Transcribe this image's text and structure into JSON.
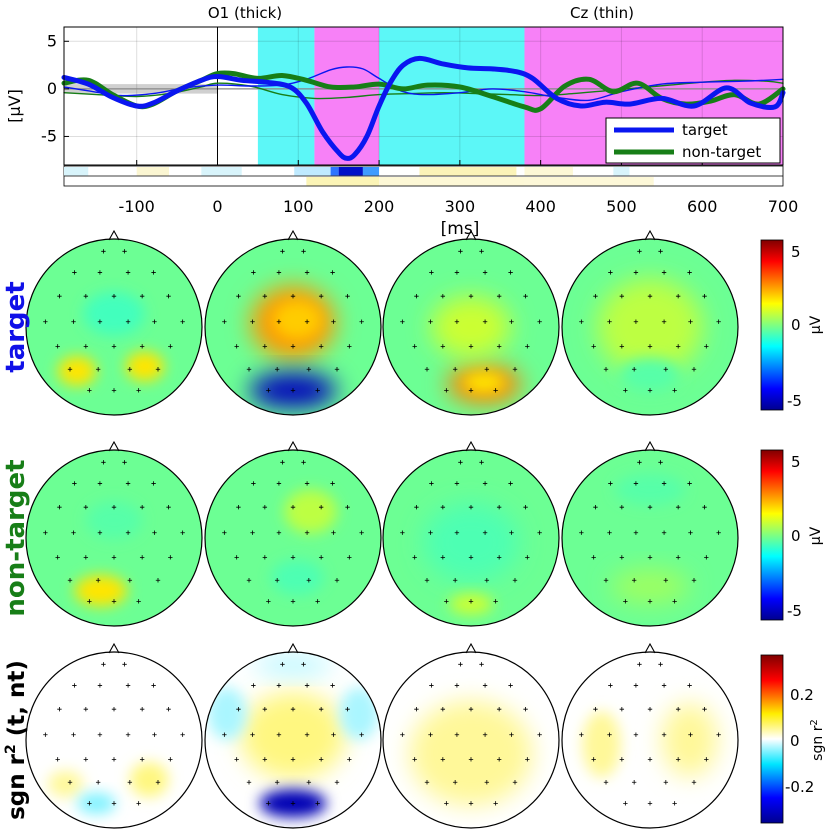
{
  "chart_data": {
    "type": "line",
    "top_panel": {
      "titles": {
        "left": "O1 (thick)",
        "right": "Cz (thin)"
      },
      "xlabel": "[ms]",
      "ylabel": "[µV]",
      "xlim": [
        -190,
        700
      ],
      "ylim": [
        -8,
        6.5
      ],
      "x_ticks": [
        -100,
        0,
        100,
        200,
        300,
        400,
        500,
        600,
        700
      ],
      "x_tick_labels": [
        "-100",
        "0",
        "100",
        "200",
        "300",
        "400",
        "500",
        "600",
        "700"
      ],
      "y_ticks": [
        5,
        0,
        -5
      ],
      "y_tick_labels": [
        "5",
        "0",
        "-5"
      ],
      "baseline_region_ms": [
        -190,
        0
      ],
      "event_line_ms": 0,
      "intervals": [
        {
          "from_ms": 50,
          "to_ms": 120,
          "color": "#5cf7f7"
        },
        {
          "from_ms": 120,
          "to_ms": 200,
          "color": "#f781f7"
        },
        {
          "from_ms": 200,
          "to_ms": 380,
          "color": "#5cf7f7"
        },
        {
          "from_ms": 380,
          "to_ms": 700,
          "color": "#f781f7"
        }
      ],
      "legend": [
        {
          "label": "target",
          "color": "#0a16f0"
        },
        {
          "label": "non-target",
          "color": "#177e17"
        }
      ],
      "series": [
        {
          "name": "target O1",
          "channel": "O1",
          "class": "target",
          "width": "thick",
          "color": "#0a16f0",
          "x": [
            -190,
            -160,
            -130,
            -100,
            -80,
            -50,
            -20,
            0,
            30,
            60,
            90,
            110,
            130,
            150,
            160,
            170,
            185,
            200,
            215,
            230,
            250,
            280,
            310,
            340,
            370,
            390,
            420,
            450,
            480,
            510,
            550,
            590,
            630,
            660,
            690,
            700
          ],
          "y": [
            1.2,
            0.5,
            -0.9,
            -1.8,
            -1.5,
            -0.2,
            0.9,
            1.3,
            0.9,
            0.7,
            0.2,
            -1.5,
            -4.5,
            -6.7,
            -7.3,
            -6.9,
            -5.0,
            -1.8,
            0.8,
            2.5,
            3.2,
            2.6,
            2.2,
            2.1,
            1.8,
            1.1,
            -1.0,
            -1.8,
            -1.4,
            -1.6,
            -1.0,
            -1.8,
            0.1,
            -1.5,
            -1.9,
            -0.4
          ]
        },
        {
          "name": "non-target O1",
          "channel": "O1",
          "class": "non-target",
          "width": "thick",
          "color": "#177e17",
          "x": [
            -190,
            -160,
            -130,
            -100,
            -80,
            -50,
            -20,
            0,
            20,
            50,
            80,
            110,
            140,
            170,
            200,
            230,
            260,
            300,
            340,
            380,
            400,
            430,
            460,
            490,
            520,
            550,
            580,
            610,
            640,
            670,
            700
          ],
          "y": [
            0.6,
            0.9,
            -0.6,
            -1.8,
            -1.6,
            -0.2,
            0.9,
            1.6,
            1.6,
            1.1,
            1.4,
            0.9,
            0.2,
            0.2,
            0.5,
            0.0,
            0.4,
            0.2,
            -0.8,
            -1.9,
            -2.1,
            0.3,
            1.0,
            -0.3,
            0.6,
            -1.0,
            -1.6,
            -1.3,
            -0.6,
            -1.6,
            0.0
          ]
        },
        {
          "name": "target Cz",
          "channel": "Cz",
          "class": "target",
          "width": "thin",
          "color": "#0a16f0",
          "x": [
            -190,
            -160,
            -120,
            -80,
            -40,
            0,
            40,
            80,
            110,
            140,
            160,
            180,
            200,
            230,
            260,
            300,
            340,
            380,
            420,
            460,
            500,
            550,
            600,
            650,
            700
          ],
          "y": [
            0.2,
            -0.2,
            -0.7,
            -0.5,
            0.1,
            0.4,
            0.3,
            0.4,
            1.0,
            2.0,
            2.3,
            2.1,
            1.1,
            -0.3,
            -0.6,
            -0.4,
            0.0,
            -0.3,
            -0.9,
            -1.2,
            -0.3,
            0.5,
            0.7,
            0.8,
            1.0
          ]
        },
        {
          "name": "non-target Cz",
          "channel": "Cz",
          "class": "non-target",
          "width": "thin",
          "color": "#177e17",
          "x": [
            -190,
            -150,
            -100,
            -60,
            -20,
            0,
            40,
            80,
            120,
            160,
            200,
            240,
            280,
            320,
            360,
            400,
            440,
            480,
            520,
            560,
            600,
            640,
            680,
            700
          ],
          "y": [
            -0.4,
            -0.6,
            -0.8,
            -0.5,
            0.2,
            0.6,
            0.3,
            -0.6,
            -1.0,
            -0.9,
            -0.6,
            -0.5,
            -0.4,
            -0.5,
            -0.6,
            -0.7,
            -0.5,
            -0.2,
            0.1,
            0.4,
            0.7,
            0.9,
            0.8,
            0.6
          ]
        }
      ]
    },
    "topomaps": {
      "rows": [
        {
          "label": "target",
          "color": "#1010e8",
          "colorbar_label": "µV",
          "colorbar_ticks": [
            "5",
            "0",
            "-5"
          ],
          "maps": [
            {
              "interval_ms": [
                50,
                120
              ],
              "blobs": [
                {
                  "x": 0.0,
                  "y": -0.15,
                  "rx": 0.35,
                  "ry": 0.25,
                  "value": -0.12
                },
                {
                  "x": -0.42,
                  "y": 0.5,
                  "rx": 0.22,
                  "ry": 0.17,
                  "value": 0.3
                },
                {
                  "x": 0.35,
                  "y": 0.45,
                  "rx": 0.22,
                  "ry": 0.17,
                  "value": 0.3
                }
              ]
            },
            {
              "interval_ms": [
                120,
                200
              ],
              "blobs": [
                {
                  "x": 0.0,
                  "y": -0.05,
                  "rx": 0.48,
                  "ry": 0.42,
                  "value": 0.45
                },
                {
                  "x": 0.05,
                  "y": -0.08,
                  "rx": 0.28,
                  "ry": 0.22,
                  "value": 0.35
                },
                {
                  "x": 0.0,
                  "y": 0.72,
                  "rx": 0.5,
                  "ry": 0.2,
                  "value": -0.9
                }
              ]
            },
            {
              "interval_ms": [
                200,
                380
              ],
              "blobs": [
                {
                  "x": 0.15,
                  "y": 0.65,
                  "rx": 0.42,
                  "ry": 0.22,
                  "value": 0.5
                },
                {
                  "x": 0.15,
                  "y": 0.63,
                  "rx": 0.24,
                  "ry": 0.12,
                  "value": 0.3
                },
                {
                  "x": 0.0,
                  "y": 0.0,
                  "rx": 0.45,
                  "ry": 0.35,
                  "value": 0.15
                }
              ]
            },
            {
              "interval_ms": [
                380,
                700
              ],
              "blobs": [
                {
                  "x": 0.0,
                  "y": 0.0,
                  "rx": 0.6,
                  "ry": 0.55,
                  "value": 0.12
                },
                {
                  "x": 0.0,
                  "y": 0.55,
                  "rx": 0.35,
                  "ry": 0.2,
                  "value": -0.08
                }
              ]
            }
          ]
        },
        {
          "label": "non-target",
          "color": "#177e17",
          "colorbar_label": "µV",
          "colorbar_ticks": [
            "5",
            "0",
            "-5"
          ],
          "maps": [
            {
              "interval_ms": [
                50,
                120
              ],
              "blobs": [
                {
                  "x": 0.0,
                  "y": -0.2,
                  "rx": 0.32,
                  "ry": 0.22,
                  "value": -0.08
                },
                {
                  "x": -0.15,
                  "y": 0.6,
                  "rx": 0.3,
                  "ry": 0.18,
                  "value": 0.3
                }
              ]
            },
            {
              "interval_ms": [
                120,
                200
              ],
              "blobs": [
                {
                  "x": 0.2,
                  "y": -0.3,
                  "rx": 0.3,
                  "ry": 0.25,
                  "value": 0.12
                },
                {
                  "x": 0.05,
                  "y": 0.45,
                  "rx": 0.3,
                  "ry": 0.2,
                  "value": -0.1
                }
              ]
            },
            {
              "interval_ms": [
                200,
                380
              ],
              "blobs": [
                {
                  "x": 0.0,
                  "y": 0.05,
                  "rx": 0.55,
                  "ry": 0.45,
                  "value": -0.1
                },
                {
                  "x": 0.0,
                  "y": 0.75,
                  "rx": 0.25,
                  "ry": 0.12,
                  "value": 0.15
                }
              ]
            },
            {
              "interval_ms": [
                380,
                700
              ],
              "blobs": [
                {
                  "x": 0.0,
                  "y": -0.55,
                  "rx": 0.4,
                  "ry": 0.18,
                  "value": -0.08
                },
                {
                  "x": 0.0,
                  "y": 0.55,
                  "rx": 0.45,
                  "ry": 0.2,
                  "value": 0.06
                }
              ]
            }
          ]
        },
        {
          "label": "sgn r² (t, nt)",
          "color": "#000000",
          "colorbar_label": "sgn r²",
          "colorbar_ticks": [
            "0.2",
            "0",
            "-0.2"
          ],
          "maps": [
            {
              "interval_ms": [
                50,
                120
              ],
              "blobs": [
                {
                  "x": -0.55,
                  "y": 0.5,
                  "rx": 0.2,
                  "ry": 0.15,
                  "value": 0.12
                },
                {
                  "x": 0.4,
                  "y": 0.45,
                  "rx": 0.22,
                  "ry": 0.2,
                  "value": 0.15
                },
                {
                  "x": -0.2,
                  "y": 0.72,
                  "rx": 0.22,
                  "ry": 0.12,
                  "value": -0.15
                }
              ]
            },
            {
              "interval_ms": [
                120,
                200
              ],
              "blobs": [
                {
                  "x": 0.0,
                  "y": -0.05,
                  "rx": 0.6,
                  "ry": 0.5,
                  "value": 0.15
                },
                {
                  "x": 0.0,
                  "y": 0.72,
                  "rx": 0.38,
                  "ry": 0.16,
                  "value": -0.9
                },
                {
                  "x": -0.75,
                  "y": -0.3,
                  "rx": 0.22,
                  "ry": 0.3,
                  "value": -0.1
                },
                {
                  "x": 0.75,
                  "y": -0.3,
                  "rx": 0.22,
                  "ry": 0.3,
                  "value": -0.1
                },
                {
                  "x": 0.0,
                  "y": -0.85,
                  "rx": 0.45,
                  "ry": 0.12,
                  "value": -0.08
                }
              ]
            },
            {
              "interval_ms": [
                200,
                380
              ],
              "blobs": [
                {
                  "x": 0.0,
                  "y": 0.15,
                  "rx": 0.7,
                  "ry": 0.6,
                  "value": 0.12
                }
              ]
            },
            {
              "interval_ms": [
                380,
                700
              ],
              "blobs": [
                {
                  "x": -0.55,
                  "y": 0.05,
                  "rx": 0.22,
                  "ry": 0.38,
                  "value": 0.12
                },
                {
                  "x": 0.45,
                  "y": 0.0,
                  "rx": 0.32,
                  "ry": 0.42,
                  "value": 0.12
                }
              ]
            }
          ]
        }
      ]
    }
  }
}
